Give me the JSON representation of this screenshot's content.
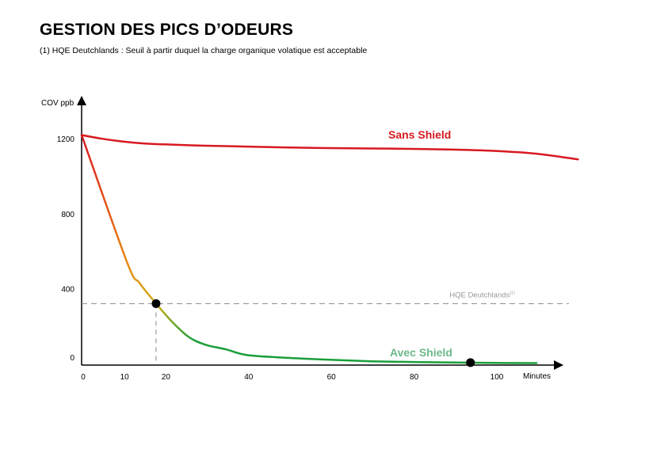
{
  "title": "GESTION DES PICS D’ODEURS",
  "subtitle": "(1) HQE Deutchlands : Seuil à partir duquel la charge organique volatique est acceptable",
  "chart_data": {
    "type": "line",
    "ylabel": "COV ppb",
    "xlabel": "Minutes",
    "xlim": [
      0,
      116
    ],
    "ylim": [
      0,
      1400
    ],
    "x_ticks": [
      0,
      10,
      20,
      40,
      60,
      80,
      100
    ],
    "y_ticks": [
      0,
      400,
      800,
      1200
    ],
    "reference_line": {
      "label": "HQE Deutchlands",
      "superscript": "(1)",
      "value": 320
    },
    "series": [
      {
        "name": "Sans Shield",
        "color": "#d71920",
        "x": [
          0,
          5,
          10,
          15,
          20,
          30,
          40,
          50,
          60,
          70,
          80,
          90,
          100,
          110,
          120
        ],
        "y": [
          1220,
          1200,
          1185,
          1175,
          1170,
          1163,
          1158,
          1153,
          1150,
          1148,
          1146,
          1142,
          1135,
          1120,
          1090
        ]
      },
      {
        "name": "Avec Shield",
        "color": "#1a9e3a",
        "gradient": [
          "#d71920",
          "#e8860f",
          "#cfae1a",
          "#1a9e3a"
        ],
        "x": [
          0,
          11,
          14,
          18,
          22,
          26,
          30,
          35,
          40,
          50,
          60,
          70,
          80,
          90,
          100,
          110
        ],
        "y": [
          1220,
          540,
          430,
          320,
          220,
          140,
          100,
          75,
          45,
          30,
          20,
          12,
          8,
          5,
          3,
          2
        ]
      }
    ],
    "markers": [
      {
        "x": 18,
        "y": 320
      },
      {
        "x": 94,
        "y": 5
      }
    ],
    "guide_line": {
      "x": 18,
      "from": 0,
      "to": 320
    }
  }
}
